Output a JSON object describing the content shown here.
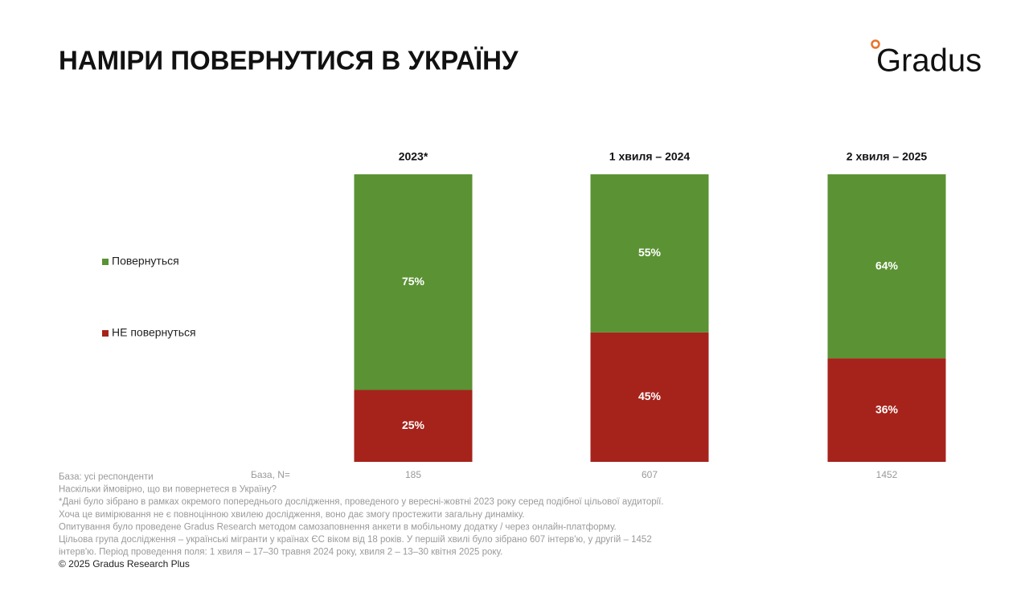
{
  "chart_data": {
    "type": "stacked_bar",
    "title": "НАМІРИ ПОВЕРНУТИСЯ В УКРАЇНУ",
    "brand": "Gradus",
    "categories": [
      "2023*",
      "1 хвиля – 2024",
      "2 хвиля – 2025"
    ],
    "series": [
      {
        "name": "Повернуться",
        "color": "#5b9234",
        "values": [
          75,
          55,
          64
        ],
        "value_labels": [
          "75%",
          "55%",
          "64%"
        ]
      },
      {
        "name": "НЕ повернуться",
        "color": "#a6231b",
        "values": [
          25,
          45,
          36
        ],
        "value_labels": [
          "25%",
          "45%",
          "36%"
        ]
      }
    ],
    "ylim": [
      0,
      100
    ],
    "base_label": "База, N=",
    "base_n": [
      185,
      607,
      1452
    ],
    "notes": [
      "База: усі респонденти",
      "Наскільки ймовірно, що ви повернетеся в Україну?",
      "*Дані було зібрано в рамках окремого попереднього дослідження, проведеного у вересні-жовтні 2023 року серед подібної цільової аудиторії.",
      "Хоча це вимірювання не є повноцінною хвилею дослідження, воно дає змогу простежити загальну динаміку.",
      "Опитування було проведене Gradus Research методом самозаповнення анкети в мобільному додатку / через онлайн-платформу.",
      "Цільова група дослідження – українські мігранти у країнах ЄС віком від 18 років. У першій хвилі було зібрано 607 інтерв'ю, у другій – 1452",
      "інтерв'ю. Період проведення поля: 1 хвиля – 17–30 травня 2024 року, хвиля 2 – 13–30 квітня 2025 року."
    ],
    "copyright": "© 2025 Gradus Research Plus"
  }
}
